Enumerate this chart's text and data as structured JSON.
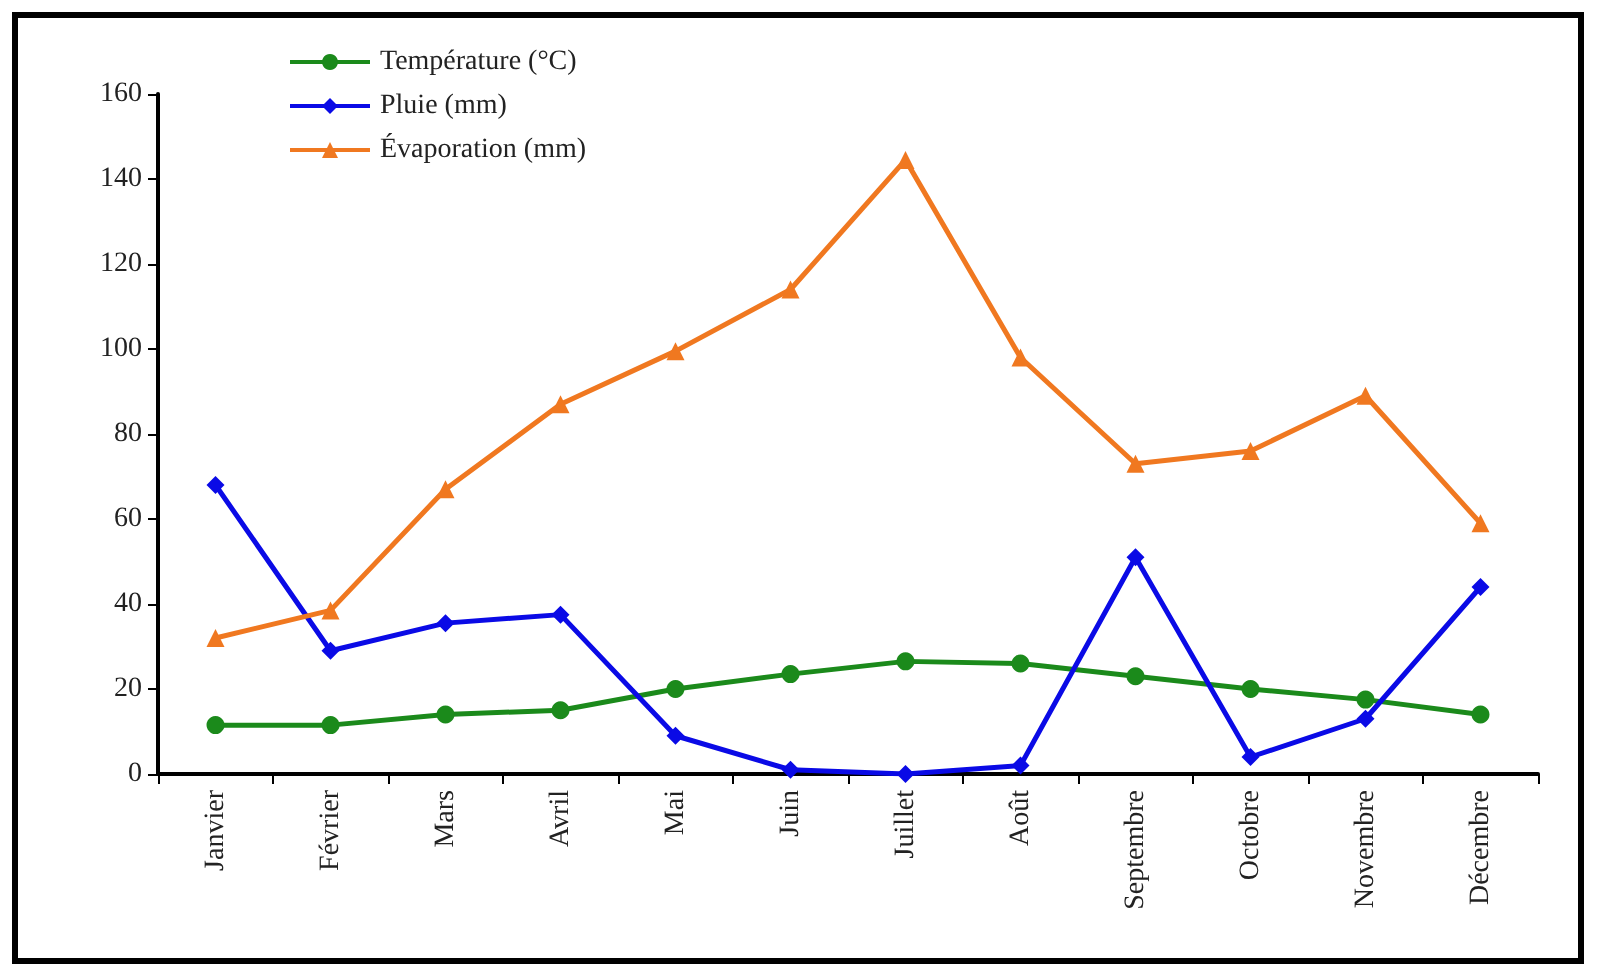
{
  "chart_data": {
    "type": "line",
    "categories": [
      "Janvier",
      "Février",
      "Mars",
      "Avril",
      "Mai",
      "Juin",
      "Juillet",
      "Août",
      "Septembre",
      "Octobre",
      "Novembre",
      "Décembre"
    ],
    "series": [
      {
        "name": "Température (°C)",
        "color": "#1b8a1b",
        "marker": "circle",
        "values": [
          11.5,
          11.5,
          14,
          15,
          20,
          23.5,
          26.5,
          26,
          23,
          20,
          17.5,
          14
        ]
      },
      {
        "name": "Pluie (mm)",
        "color": "#0a0ae6",
        "marker": "diamond",
        "values": [
          68,
          29,
          35.5,
          37.5,
          9,
          1,
          0,
          2,
          51,
          4,
          13,
          44
        ]
      },
      {
        "name": "Évaporation (mm)",
        "color": "#f07820",
        "marker": "triangle",
        "values": [
          32,
          38.5,
          67,
          87,
          99.5,
          114,
          144.5,
          98,
          73,
          76,
          89,
          59
        ]
      }
    ],
    "ylim": [
      0,
      160
    ],
    "yticks": [
      0,
      20,
      40,
      60,
      80,
      100,
      120,
      140,
      160
    ],
    "grid": false,
    "legend": "top left",
    "line_style": "solid"
  }
}
